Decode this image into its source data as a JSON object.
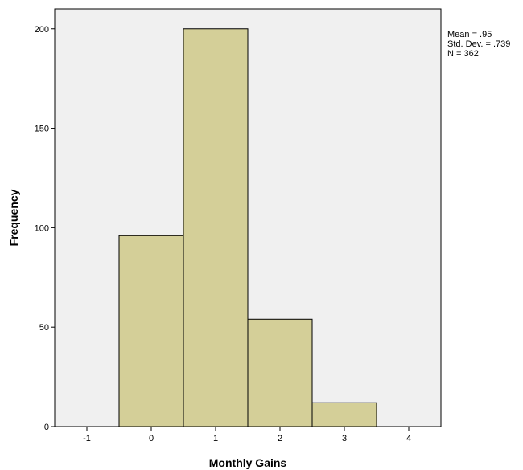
{
  "chart_data": {
    "type": "bar",
    "subtype": "histogram",
    "bins": [
      {
        "start": -0.5,
        "end": 0.5,
        "value": 96
      },
      {
        "start": 0.5,
        "end": 1.5,
        "value": 200
      },
      {
        "start": 1.5,
        "end": 2.5,
        "value": 54
      },
      {
        "start": 2.5,
        "end": 3.5,
        "value": 12
      }
    ],
    "xlabel": "Monthly Gains",
    "ylabel": "Frequency",
    "xlim": [
      -1.5,
      4.5
    ],
    "ylim": [
      0,
      210
    ],
    "xticks": [
      -1,
      0,
      1,
      2,
      3,
      4
    ],
    "yticks": [
      0,
      50,
      100,
      150,
      200
    ],
    "grid": false,
    "colors": {
      "bar_fill": "#d4cf98",
      "bar_stroke": "#000000",
      "plot_background": "#f0f0f0"
    },
    "stats": {
      "mean": "Mean = .95",
      "std_dev": "Std. Dev. = .739",
      "n": "N = 362"
    }
  }
}
